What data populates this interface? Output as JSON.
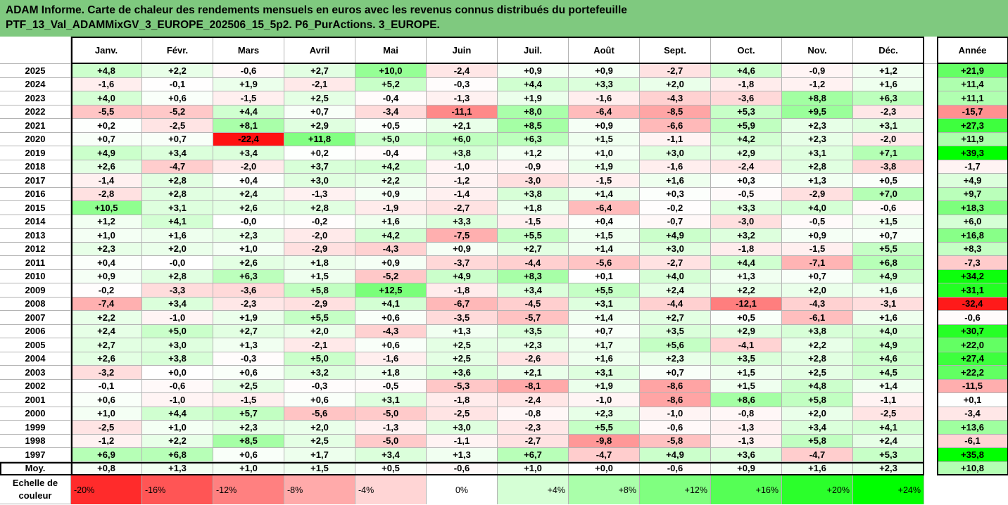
{
  "title": {
    "line1": "ADAM Informe. Carte de chaleur des rendements mensuels en euros avec les revenus connus distribués du portefeuille",
    "line2": "PTF_13_Val_ADAMMixGV_3_EUROPE_202506_15_5p2. P6_PurActions. 3_EUROPE."
  },
  "chart_data": {
    "type": "heatmap",
    "columns": [
      "Janv.",
      "Févr.",
      "Mars",
      "Avril",
      "Mai",
      "Juin",
      "Juil.",
      "Août",
      "Sept.",
      "Oct.",
      "Nov.",
      "Déc."
    ],
    "annual_label": "Année",
    "rows": [
      {
        "year": "2025",
        "values": [
          "+4,8",
          "+2,2",
          "-0,6",
          "+2,7",
          "+10,0",
          "-2,4",
          "+0,9",
          "+0,9",
          "-2,7",
          "+4,6",
          "-0,9",
          "+1,2"
        ],
        "annual": "+21,9"
      },
      {
        "year": "2024",
        "values": [
          "-1,6",
          "-0,1",
          "+1,9",
          "-2,1",
          "+5,2",
          "-0,3",
          "+4,4",
          "+3,3",
          "+2,0",
          "-1,8",
          "-1,2",
          "+1,6"
        ],
        "annual": "+11,4"
      },
      {
        "year": "2023",
        "values": [
          "+4,0",
          "+0,6",
          "-1,5",
          "+2,5",
          "-0,4",
          "-1,3",
          "+1,9",
          "-1,6",
          "-4,3",
          "-3,6",
          "+8,8",
          "+6,3"
        ],
        "annual": "+11,1"
      },
      {
        "year": "2022",
        "values": [
          "-5,5",
          "-5,2",
          "+4,4",
          "+0,7",
          "-3,4",
          "-11,1",
          "+8,0",
          "-6,4",
          "-8,5",
          "+5,3",
          "+9,5",
          "-2,3"
        ],
        "annual": "-15,7"
      },
      {
        "year": "2021",
        "values": [
          "+0,2",
          "-2,5",
          "+8,1",
          "+2,9",
          "+0,5",
          "+2,1",
          "+8,5",
          "+0,9",
          "-6,6",
          "+5,9",
          "+2,3",
          "+3,1"
        ],
        "annual": "+27,3"
      },
      {
        "year": "2020",
        "values": [
          "+0,7",
          "+0,7",
          "-22,4",
          "+11,8",
          "+5,0",
          "+6,0",
          "+6,3",
          "+1,5",
          "-1,1",
          "+4,2",
          "+2,3",
          "-2,0"
        ],
        "annual": "+11,9"
      },
      {
        "year": "2019",
        "values": [
          "+4,9",
          "+3,4",
          "+3,4",
          "+0,2",
          "-0,4",
          "+3,8",
          "+1,2",
          "+1,0",
          "+3,0",
          "+2,9",
          "+3,1",
          "+7,1"
        ],
        "annual": "+39,3"
      },
      {
        "year": "2018",
        "values": [
          "+2,6",
          "-4,7",
          "-2,0",
          "+3,7",
          "+4,2",
          "-1,0",
          "-0,9",
          "+1,9",
          "-1,6",
          "-2,4",
          "+2,8",
          "-3,8"
        ],
        "annual": "-1,7"
      },
      {
        "year": "2017",
        "values": [
          "-1,4",
          "+2,8",
          "+0,4",
          "+3,0",
          "+2,2",
          "-1,2",
          "-3,0",
          "-1,5",
          "+1,6",
          "+0,3",
          "+1,3",
          "+0,5"
        ],
        "annual": "+4,9"
      },
      {
        "year": "2016",
        "values": [
          "-2,8",
          "+2,8",
          "+2,4",
          "-1,3",
          "+0,9",
          "-1,4",
          "+3,8",
          "+1,4",
          "+0,3",
          "-0,5",
          "-2,9",
          "+7,0"
        ],
        "annual": "+9,7"
      },
      {
        "year": "2015",
        "values": [
          "+10,5",
          "+3,1",
          "+2,6",
          "+2,8",
          "-1,9",
          "-2,7",
          "+1,8",
          "-6,4",
          "-0,2",
          "+3,3",
          "+4,0",
          "-0,6"
        ],
        "annual": "+18,3"
      },
      {
        "year": "2014",
        "values": [
          "+1,2",
          "+4,1",
          "-0,0",
          "-0,2",
          "+1,6",
          "+3,3",
          "-1,5",
          "+0,4",
          "-0,7",
          "-3,0",
          "-0,5",
          "+1,5"
        ],
        "annual": "+6,0"
      },
      {
        "year": "2013",
        "values": [
          "+1,0",
          "+1,6",
          "+2,3",
          "-2,0",
          "+4,2",
          "-7,5",
          "+5,5",
          "+1,5",
          "+4,9",
          "+3,2",
          "+0,9",
          "+0,7"
        ],
        "annual": "+16,8"
      },
      {
        "year": "2012",
        "values": [
          "+2,3",
          "+2,0",
          "+1,0",
          "-2,9",
          "-4,3",
          "+0,9",
          "+2,7",
          "+1,4",
          "+3,0",
          "-1,8",
          "-1,5",
          "+5,5"
        ],
        "annual": "+8,3"
      },
      {
        "year": "2011",
        "values": [
          "+0,4",
          "-0,0",
          "+2,6",
          "+1,8",
          "+0,9",
          "-3,7",
          "-4,4",
          "-5,6",
          "-2,7",
          "+4,4",
          "-7,1",
          "+6,8"
        ],
        "annual": "-7,3"
      },
      {
        "year": "2010",
        "values": [
          "+0,9",
          "+2,8",
          "+6,3",
          "+1,5",
          "-5,2",
          "+4,9",
          "+8,3",
          "+0,1",
          "+4,0",
          "+1,3",
          "+0,7",
          "+4,9"
        ],
        "annual": "+34,2"
      },
      {
        "year": "2009",
        "values": [
          "-0,2",
          "-3,3",
          "-3,6",
          "+5,8",
          "+12,5",
          "-1,8",
          "+3,4",
          "+5,5",
          "+2,4",
          "+2,2",
          "+2,0",
          "+1,6"
        ],
        "annual": "+31,1"
      },
      {
        "year": "2008",
        "values": [
          "-7,4",
          "+3,4",
          "-2,3",
          "-2,9",
          "+4,1",
          "-6,7",
          "-4,5",
          "+3,1",
          "-4,4",
          "-12,1",
          "-4,3",
          "-3,1"
        ],
        "annual": "-32,4"
      },
      {
        "year": "2007",
        "values": [
          "+2,2",
          "-1,0",
          "+1,9",
          "+5,5",
          "+0,6",
          "-3,5",
          "-5,7",
          "+1,4",
          "+2,7",
          "+0,5",
          "-6,1",
          "+1,6"
        ],
        "annual": "-0,6"
      },
      {
        "year": "2006",
        "values": [
          "+2,4",
          "+5,0",
          "+2,7",
          "+2,0",
          "-4,3",
          "+1,3",
          "+3,5",
          "+0,7",
          "+3,5",
          "+2,9",
          "+3,8",
          "+4,0"
        ],
        "annual": "+30,7"
      },
      {
        "year": "2005",
        "values": [
          "+2,7",
          "+3,0",
          "+1,3",
          "-2,1",
          "+0,6",
          "+2,5",
          "+2,3",
          "+1,7",
          "+5,6",
          "-4,1",
          "+2,2",
          "+4,9"
        ],
        "annual": "+22,0"
      },
      {
        "year": "2004",
        "values": [
          "+2,6",
          "+3,8",
          "-0,3",
          "+5,0",
          "-1,6",
          "+2,5",
          "-2,6",
          "+1,6",
          "+2,3",
          "+3,5",
          "+2,8",
          "+4,6"
        ],
        "annual": "+27,4"
      },
      {
        "year": "2003",
        "values": [
          "-3,2",
          "+0,0",
          "+0,6",
          "+3,2",
          "+1,8",
          "+3,6",
          "+2,1",
          "+3,1",
          "+0,7",
          "+1,5",
          "+2,5",
          "+4,5"
        ],
        "annual": "+22,2"
      },
      {
        "year": "2002",
        "values": [
          "-0,1",
          "-0,6",
          "+2,5",
          "-0,3",
          "-0,5",
          "-5,3",
          "-8,1",
          "+1,9",
          "-8,6",
          "+1,5",
          "+4,8",
          "+1,4"
        ],
        "annual": "-11,5"
      },
      {
        "year": "2001",
        "values": [
          "+0,6",
          "-1,0",
          "-1,5",
          "+0,6",
          "+3,1",
          "-1,8",
          "-2,4",
          "-1,0",
          "-8,6",
          "+8,6",
          "+5,8",
          "-1,1"
        ],
        "annual": "+0,1"
      },
      {
        "year": "2000",
        "values": [
          "+1,0",
          "+4,4",
          "+5,7",
          "-5,6",
          "-5,0",
          "-2,5",
          "-0,8",
          "+2,3",
          "-1,0",
          "-0,8",
          "+2,0",
          "-2,5"
        ],
        "annual": "-3,4"
      },
      {
        "year": "1999",
        "values": [
          "-2,5",
          "+1,0",
          "+2,3",
          "+2,0",
          "-1,3",
          "+3,0",
          "-2,3",
          "+5,5",
          "-0,6",
          "-1,3",
          "+3,4",
          "+4,1"
        ],
        "annual": "+13,6"
      },
      {
        "year": "1998",
        "values": [
          "-1,2",
          "+2,2",
          "+8,5",
          "+2,5",
          "-5,0",
          "-1,1",
          "-2,7",
          "-9,8",
          "-5,8",
          "-1,3",
          "+5,8",
          "+2,4"
        ],
        "annual": "-6,1"
      },
      {
        "year": "1997",
        "values": [
          "+6,9",
          "+6,8",
          "+0,6",
          "+1,7",
          "+3,4",
          "+1,3",
          "+6,7",
          "-4,7",
          "+4,9",
          "+3,6",
          "-4,7",
          "+5,3"
        ],
        "annual": "+35,8"
      }
    ],
    "average": {
      "label": "Moy.",
      "values": [
        "+0,8",
        "+1,3",
        "+1,0",
        "+1,5",
        "+0,5",
        "-0,6",
        "+1,0",
        "+0,0",
        "-0,6",
        "+0,9",
        "+1,6",
        "+2,3"
      ],
      "annual": "+10,8"
    },
    "scale": {
      "label": "Echelle de couleur",
      "steps": [
        "-20%",
        "-16%",
        "-12%",
        "-8%",
        "-4%",
        "0%",
        "+4%",
        "+8%",
        "+12%",
        "+16%",
        "+20%",
        "+24%"
      ],
      "step_values": [
        -20,
        -16,
        -12,
        -8,
        -4,
        0,
        4,
        8,
        12,
        16,
        20,
        24
      ]
    },
    "colors": {
      "negative_max": "#ff0000",
      "positive_max": "#00ff00",
      "neutral": "#ffffff"
    }
  }
}
